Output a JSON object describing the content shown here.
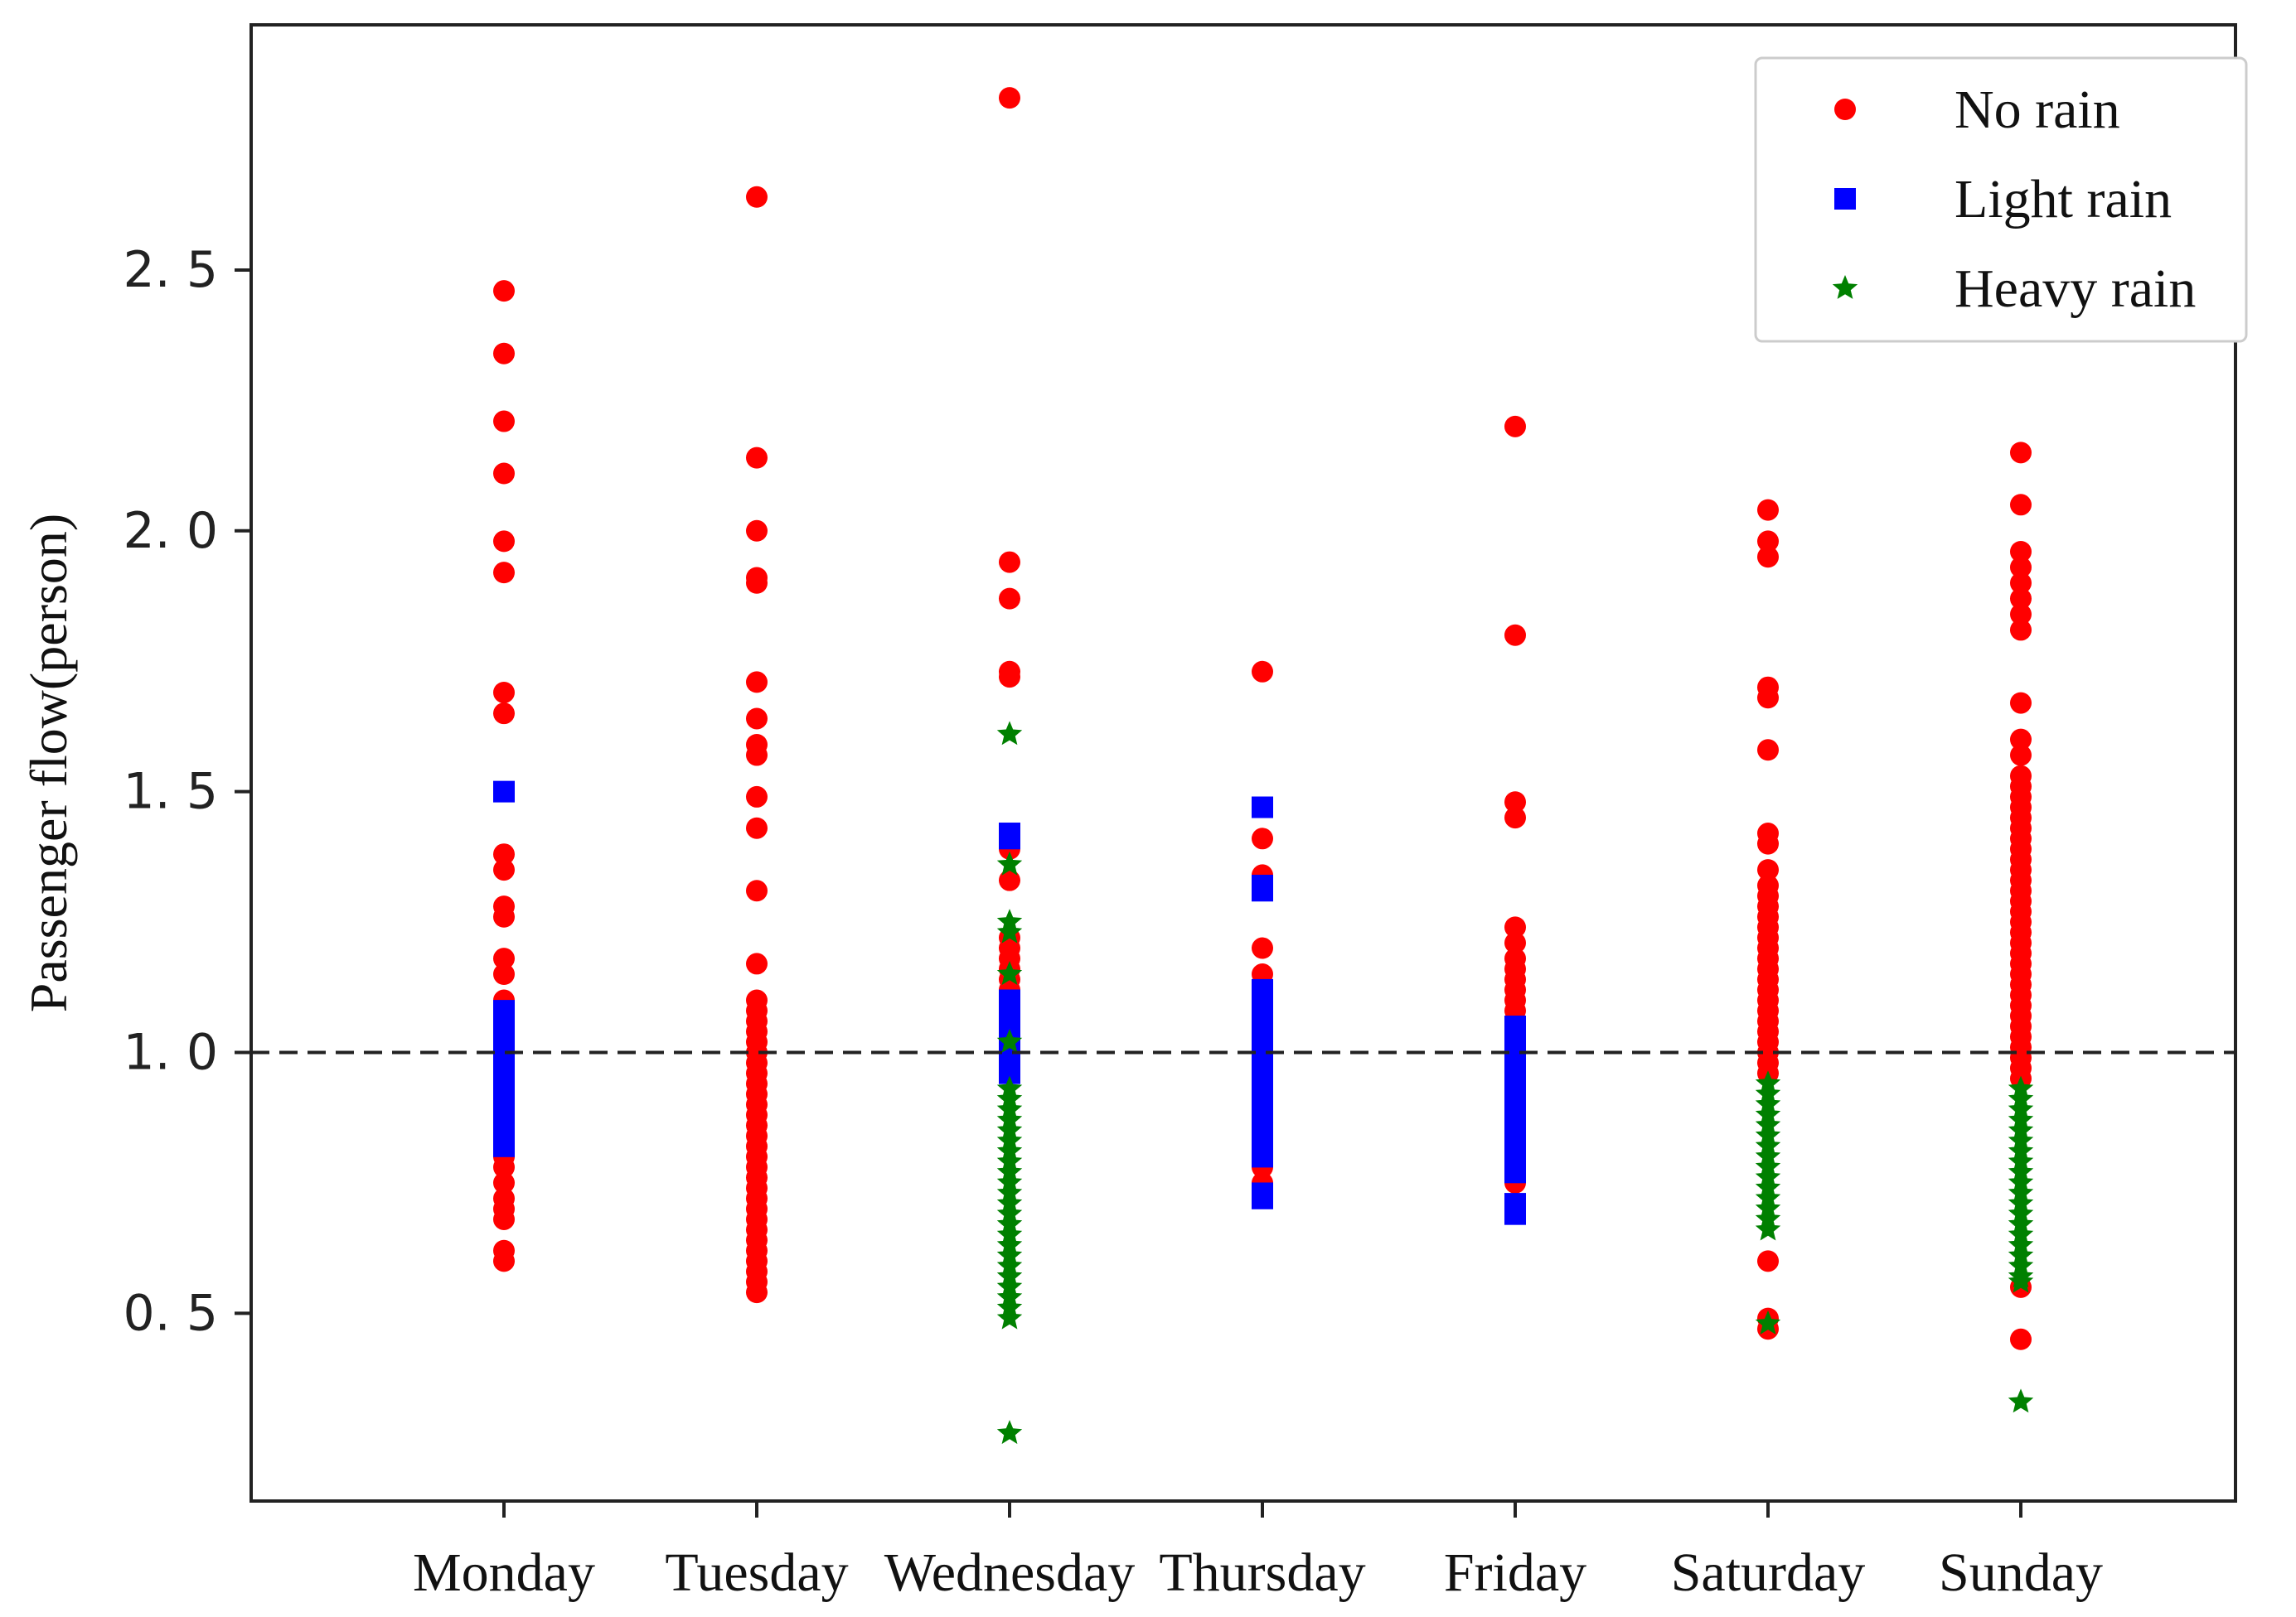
{
  "chart_data": {
    "type": "scatter",
    "title": "",
    "xlabel": "",
    "ylabel": "Passenger flow(person)",
    "categories": [
      "Monday",
      "Tuesday",
      "Wednesday",
      "Thursday",
      "Friday",
      "Saturday",
      "Sunday"
    ],
    "ylim": [
      0.14,
      2.97
    ],
    "yticks": [
      0.5,
      1.0,
      1.5,
      2.0,
      2.5
    ],
    "ytick_labels": [
      "0. 5",
      "1. 0",
      "1. 5",
      "2. 0",
      "2. 5"
    ],
    "reference_line": {
      "y": 1.0,
      "style": "dashed"
    },
    "legend": {
      "placement": "top-right"
    },
    "series": [
      {
        "name": "No rain",
        "marker": "circle",
        "color": "#ff0000",
        "points": {
          "Monday": [
            2.46,
            2.34,
            2.21,
            2.11,
            1.98,
            1.92,
            1.69,
            1.65,
            1.38,
            1.35,
            1.28,
            1.26,
            1.18,
            1.15,
            1.1,
            0.98,
            0.95,
            0.8,
            0.78,
            0.75,
            0.72,
            0.7,
            0.68,
            0.62,
            0.6
          ],
          "Tuesday": [
            2.64,
            2.14,
            2.0,
            1.91,
            1.9,
            1.71,
            1.64,
            1.59,
            1.57,
            1.49,
            1.43,
            1.31,
            1.17,
            1.1,
            1.08,
            1.06,
            1.04,
            1.02,
            1.0,
            0.98,
            0.96,
            0.94,
            0.92,
            0.9,
            0.88,
            0.86,
            0.84,
            0.82,
            0.8,
            0.78,
            0.76,
            0.74,
            0.72,
            0.7,
            0.68,
            0.66,
            0.64,
            0.62,
            0.6,
            0.58,
            0.56,
            0.54
          ],
          "Wednesday": [
            2.83,
            1.94,
            1.87,
            1.73,
            1.72,
            1.39,
            1.33,
            1.22,
            1.2,
            1.18,
            1.16,
            1.14,
            1.12,
            1.1
          ],
          "Thursday": [
            1.73,
            1.41,
            1.34,
            1.2,
            1.15,
            0.78,
            0.75
          ],
          "Friday": [
            2.2,
            1.8,
            1.48,
            1.45,
            1.24,
            1.21,
            1.18,
            1.16,
            1.14,
            1.12,
            1.1,
            1.08,
            1.06,
            0.75
          ],
          "Saturday": [
            2.04,
            1.98,
            1.95,
            1.7,
            1.68,
            1.58,
            1.42,
            1.4,
            1.35,
            1.32,
            1.3,
            1.28,
            1.26,
            1.24,
            1.22,
            1.2,
            1.18,
            1.16,
            1.14,
            1.12,
            1.1,
            1.08,
            1.06,
            1.04,
            1.02,
            1.0,
            0.98,
            0.96,
            0.6,
            0.49,
            0.47
          ],
          "Sunday": [
            2.15,
            2.05,
            1.96,
            1.93,
            1.9,
            1.87,
            1.84,
            1.81,
            1.67,
            1.6,
            1.57,
            1.53,
            1.51,
            1.49,
            1.47,
            1.45,
            1.43,
            1.41,
            1.39,
            1.37,
            1.35,
            1.33,
            1.31,
            1.29,
            1.27,
            1.25,
            1.23,
            1.21,
            1.19,
            1.17,
            1.15,
            1.13,
            1.11,
            1.09,
            1.07,
            1.05,
            1.03,
            1.01,
            0.99,
            0.97,
            0.95,
            0.55,
            0.45
          ]
        }
      },
      {
        "name": "Light rain",
        "marker": "square",
        "color": "#0000ff",
        "points": {
          "Monday": [
            1.5,
            1.08,
            1.06,
            1.04,
            1.02,
            1.0,
            0.98,
            0.96,
            0.94,
            0.92,
            0.9,
            0.88,
            0.86,
            0.84,
            0.82
          ],
          "Tuesday": [],
          "Wednesday": [
            1.42,
            1.41,
            1.1,
            1.08,
            1.06,
            1.04,
            1.02,
            1.0,
            0.98,
            0.96
          ],
          "Thursday": [
            1.47,
            1.32,
            1.31,
            1.12,
            1.1,
            1.08,
            1.06,
            1.04,
            1.02,
            1.0,
            0.98,
            0.96,
            0.94,
            0.92,
            0.9,
            0.88,
            0.86,
            0.84,
            0.82,
            0.8,
            0.73,
            0.72
          ],
          "Friday": [
            1.05,
            1.03,
            1.01,
            0.99,
            0.97,
            0.95,
            0.93,
            0.91,
            0.89,
            0.87,
            0.85,
            0.83,
            0.81,
            0.79,
            0.77,
            0.71,
            0.69
          ],
          "Saturday": [],
          "Sunday": []
        }
      },
      {
        "name": "Heavy rain",
        "marker": "star",
        "color": "#008000",
        "points": {
          "Monday": [],
          "Tuesday": [],
          "Wednesday": [
            1.61,
            1.36,
            1.25,
            1.23,
            1.15,
            1.02,
            0.93,
            0.91,
            0.89,
            0.87,
            0.85,
            0.83,
            0.81,
            0.79,
            0.77,
            0.75,
            0.73,
            0.71,
            0.69,
            0.67,
            0.65,
            0.63,
            0.61,
            0.59,
            0.57,
            0.55,
            0.53,
            0.51,
            0.49,
            0.27
          ],
          "Thursday": [],
          "Friday": [],
          "Saturday": [
            0.94,
            0.92,
            0.9,
            0.88,
            0.86,
            0.84,
            0.82,
            0.8,
            0.78,
            0.76,
            0.74,
            0.72,
            0.7,
            0.68,
            0.66,
            0.48
          ],
          "Sunday": [
            0.93,
            0.91,
            0.89,
            0.87,
            0.85,
            0.83,
            0.81,
            0.79,
            0.77,
            0.75,
            0.73,
            0.71,
            0.69,
            0.67,
            0.65,
            0.63,
            0.61,
            0.59,
            0.57,
            0.56,
            0.33
          ]
        }
      }
    ]
  },
  "colors": {
    "axis": "#222222",
    "reference_line": "#222222",
    "legend_border": "#cccccc",
    "background": "#ffffff"
  }
}
